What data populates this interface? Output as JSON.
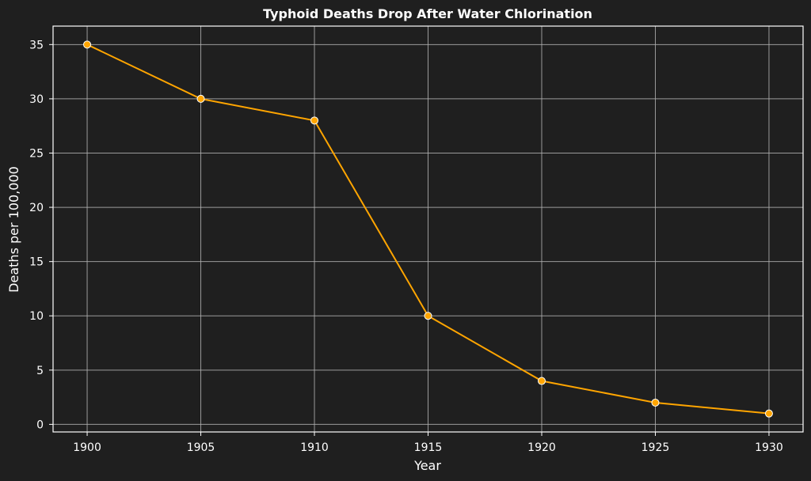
{
  "chart_data": {
    "type": "line",
    "title": "Typhoid Deaths Drop After Water Chlorination",
    "xlabel": "Year",
    "ylabel": "Deaths per 100,000",
    "x": [
      1900,
      1905,
      1910,
      1915,
      1920,
      1925,
      1930
    ],
    "series": [
      {
        "values": [
          35,
          30,
          28,
          10,
          4,
          2,
          1
        ]
      }
    ],
    "xticks": [
      "1900",
      "1905",
      "1910",
      "1915",
      "1920",
      "1925",
      "1930"
    ],
    "yticks": [
      "0",
      "5",
      "10",
      "15",
      "20",
      "25",
      "30",
      "35"
    ],
    "xlim": [
      1898.5,
      1931.5
    ],
    "ylim": [
      -0.7,
      36.7
    ],
    "grid": true,
    "colors": {
      "background": "#1f1f1f",
      "line": "#ffa500",
      "marker_edge": "#ffffff",
      "grid": "#b0b0b0",
      "text": "#ffffff",
      "axes": "#ffffff"
    }
  }
}
